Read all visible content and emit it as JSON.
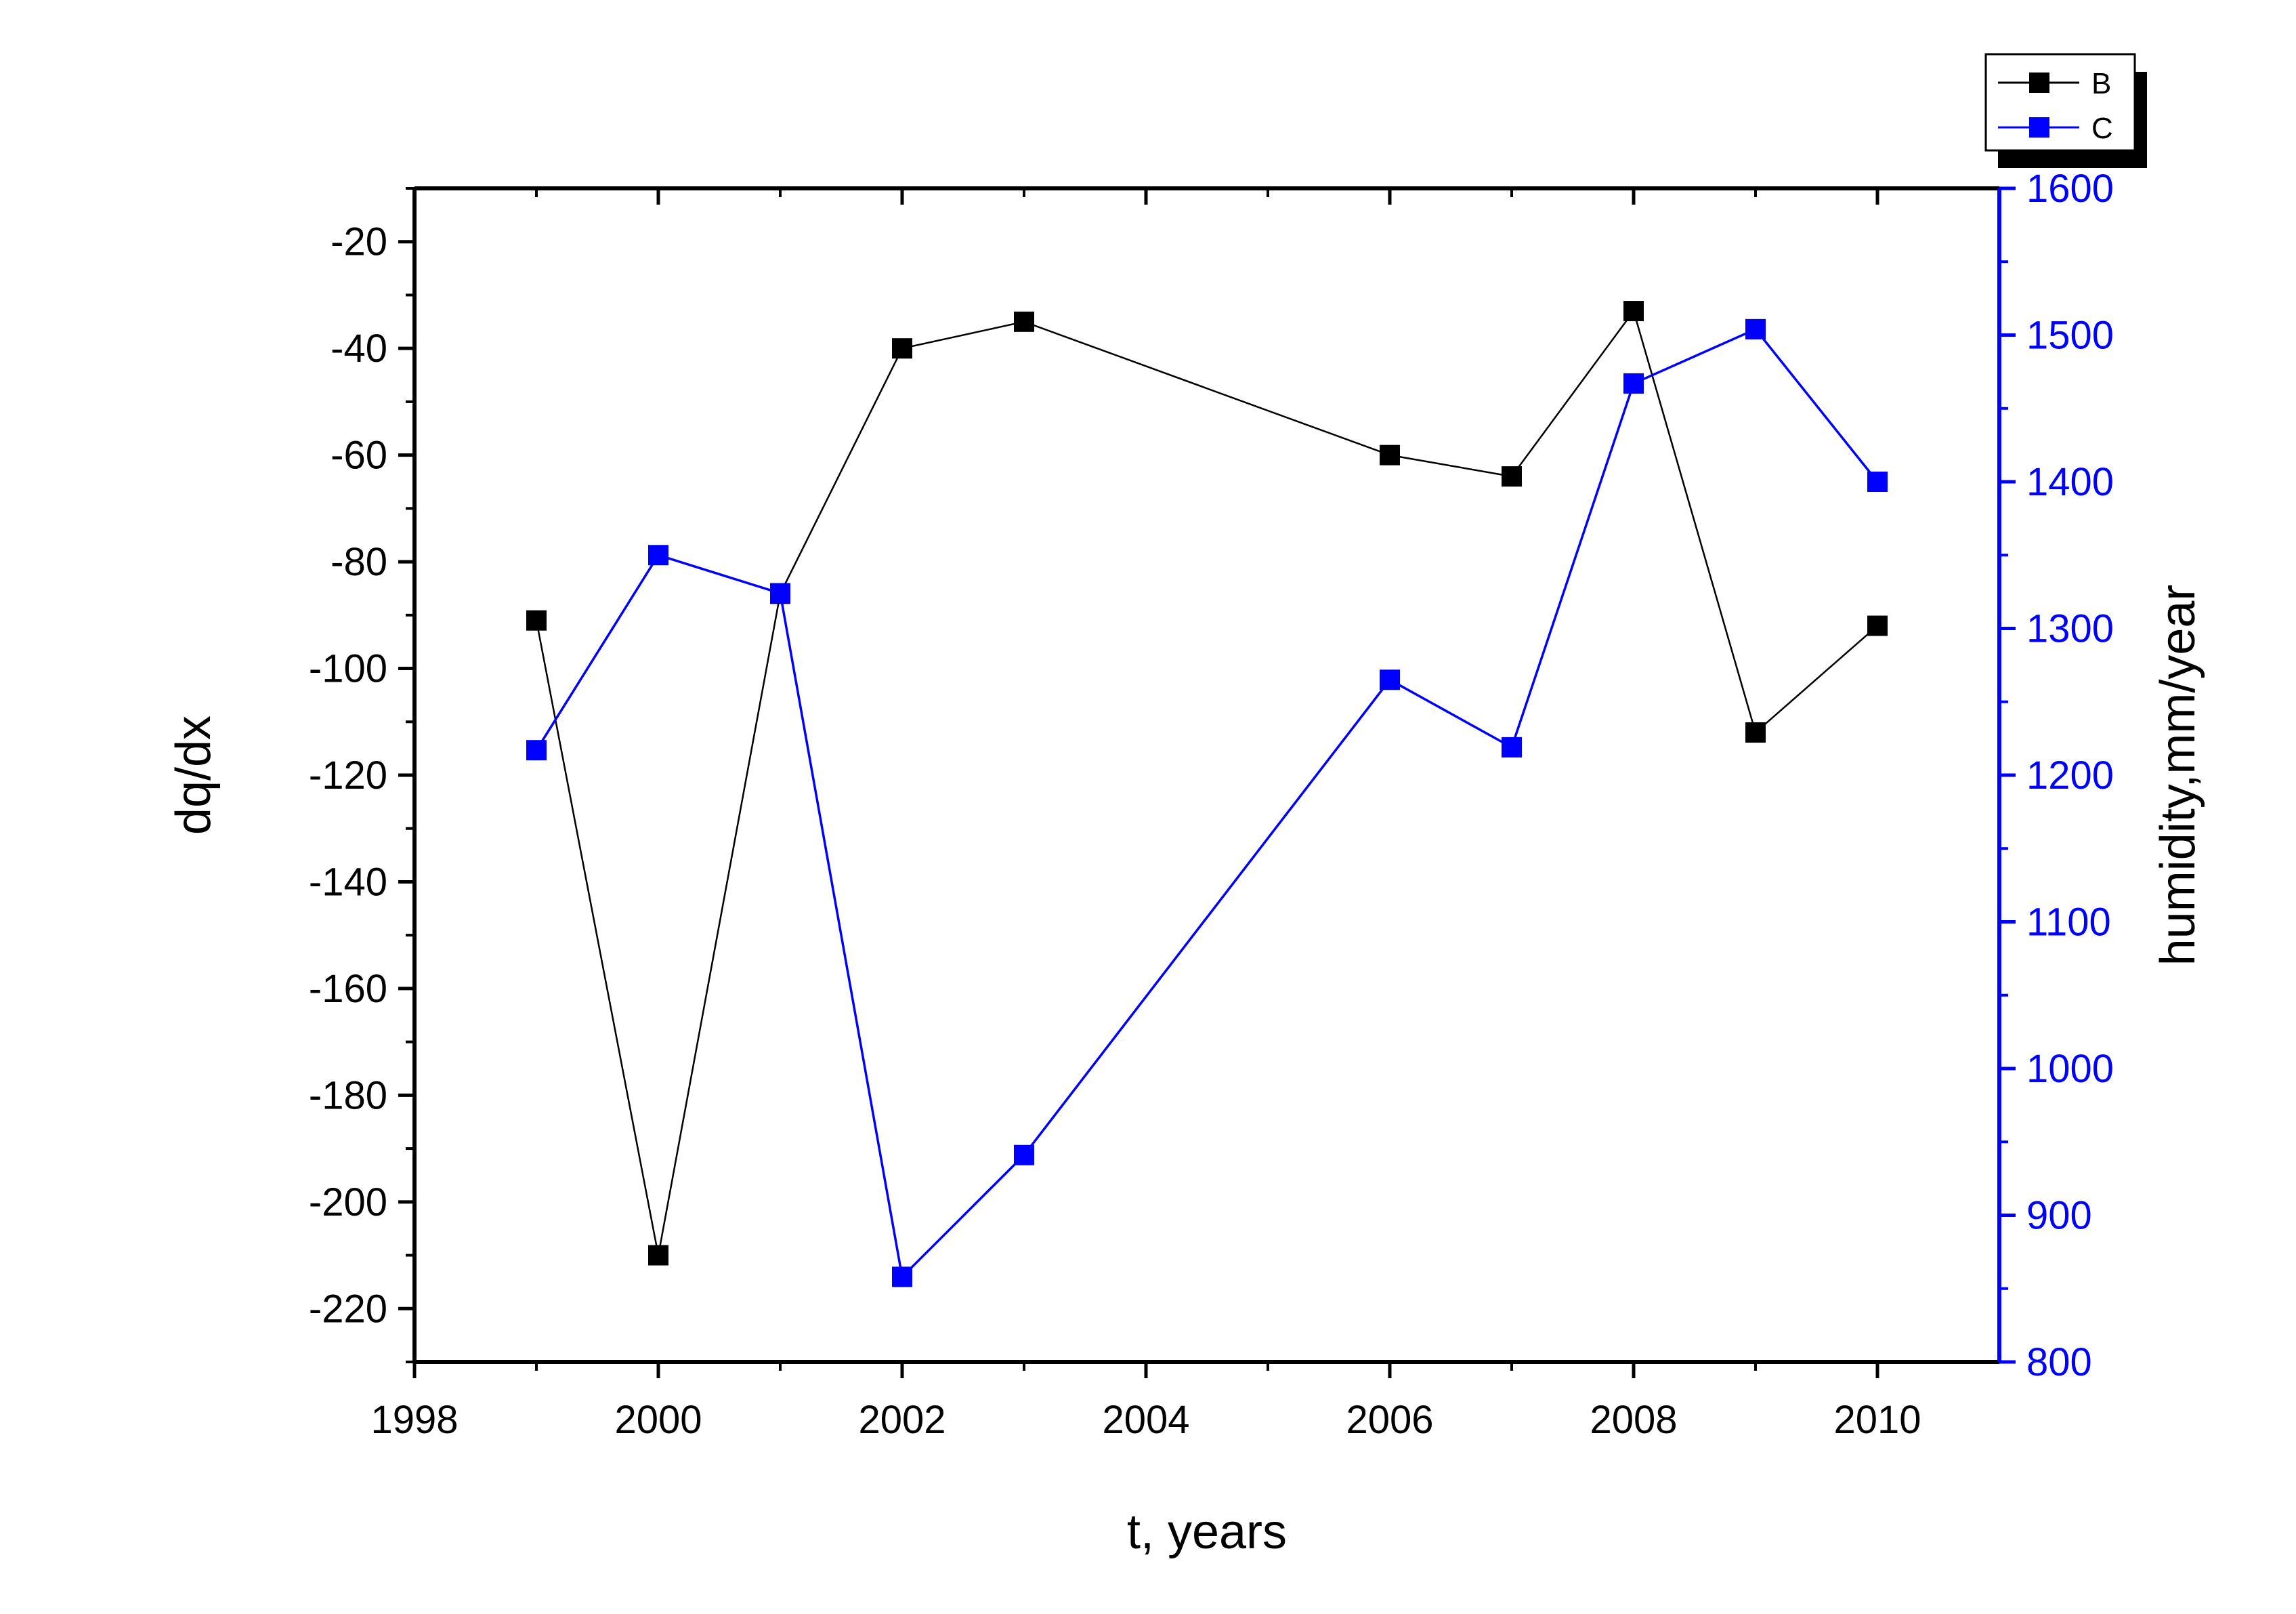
{
  "chart_data": {
    "type": "line",
    "title": "",
    "xlabel": "t, years",
    "ylabel": "dq/dx",
    "y2label": "humidity,mm/year",
    "xlim": [
      1998,
      2011
    ],
    "ylim": [
      -230,
      -10
    ],
    "y2lim": [
      800,
      1600
    ],
    "xticks": [
      1998,
      2000,
      2002,
      2004,
      2006,
      2008,
      2010
    ],
    "yticks": [
      -20,
      -40,
      -60,
      -80,
      -100,
      -120,
      -140,
      -160,
      -180,
      -200,
      -220
    ],
    "y2ticks": [
      800,
      900,
      1000,
      1100,
      1200,
      1300,
      1400,
      1500,
      1600
    ],
    "grid": false,
    "legend_position": "top-right",
    "series": [
      {
        "name": "B",
        "axis": "left",
        "color": "#000000",
        "marker": "square",
        "x": [
          1999,
          2000,
          2001,
          2002,
          2003,
          2006,
          2007,
          2008,
          2009,
          2010
        ],
        "values": [
          -91,
          -210,
          -86,
          -40,
          -35,
          -60,
          -64,
          -33,
          -112,
          -92
        ]
      },
      {
        "name": "C",
        "axis": "right",
        "color": "#0000ff",
        "marker": "square",
        "x": [
          1999,
          2000,
          2001,
          2002,
          2003,
          2006,
          2007,
          2008,
          2009,
          2010
        ],
        "values": [
          1217,
          1350,
          1324,
          858,
          941,
          1265,
          1219,
          1467,
          1504,
          1400
        ]
      }
    ]
  }
}
